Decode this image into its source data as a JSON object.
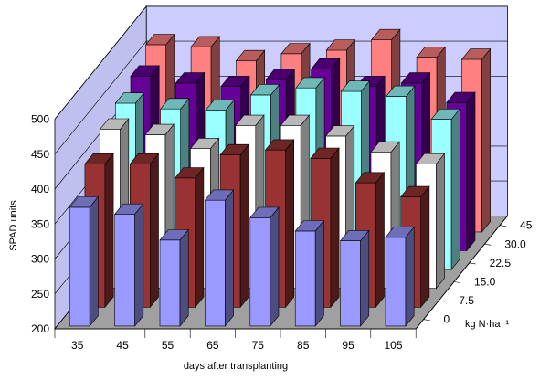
{
  "chart_data": {
    "type": "bar3d",
    "title": "",
    "xlabel": "days after transplanting",
    "ylabel": "SPAD units",
    "zlabel": "kg N·ha⁻¹",
    "ylim": [
      200,
      500
    ],
    "yticks": [
      200,
      250,
      300,
      350,
      400,
      450,
      500
    ],
    "categories": [
      "35",
      "45",
      "55",
      "65",
      "75",
      "85",
      "95",
      "105"
    ],
    "depth_labels": [
      "0",
      "7.5",
      "15.0",
      "22.5",
      "30.0",
      "45"
    ],
    "grid": true,
    "series": [
      {
        "key": "0",
        "color": "#9999FF",
        "values": [
          370,
          360,
          323,
          380,
          355,
          336,
          322,
          327
        ]
      },
      {
        "key": "7.5",
        "color": "#993333",
        "values": [
          405,
          405,
          385,
          418,
          425,
          413,
          378,
          358
        ]
      },
      {
        "key": "15.0",
        "color": "#FFFFFF",
        "values": [
          428,
          420,
          400,
          433,
          433,
          418,
          395,
          378
        ]
      },
      {
        "key": "22.5",
        "color": "#99FFFF",
        "values": [
          438,
          430,
          428,
          450,
          460,
          455,
          448,
          415
        ]
      },
      {
        "key": "30.0",
        "color": "#660099",
        "values": [
          450,
          440,
          435,
          445,
          460,
          435,
          440,
          412
        ]
      },
      {
        "key": "45",
        "color": "#FF8080",
        "values": [
          468,
          465,
          445,
          455,
          460,
          475,
          450,
          447
        ]
      }
    ]
  }
}
